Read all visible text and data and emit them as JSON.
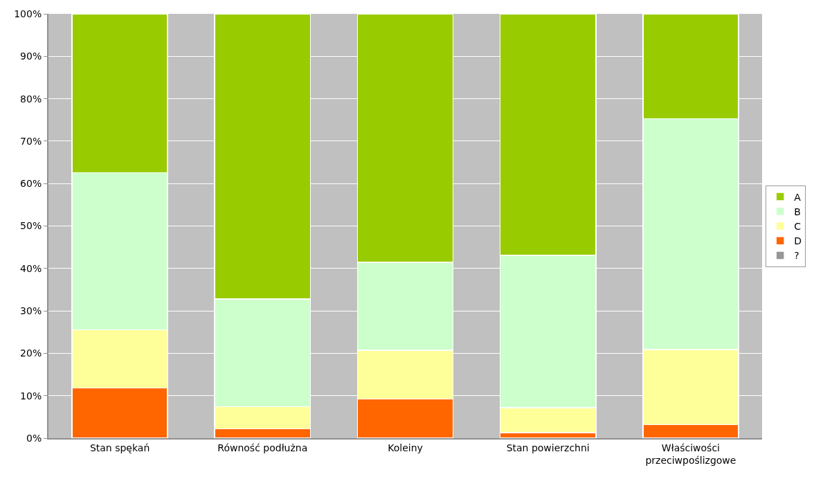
{
  "chart_data": {
    "type": "bar",
    "stacked": true,
    "categories": [
      "Stan spękań",
      "Równość podłużna",
      "Koleiny",
      "Stan powierzchni",
      "Właściwości przeciwpoślizgowe"
    ],
    "series": [
      {
        "name": "?",
        "color": "#969696",
        "values": [
          0,
          0,
          0,
          0,
          0
        ]
      },
      {
        "name": "D",
        "color": "#ff6600",
        "values": [
          11.8,
          2.2,
          9.2,
          1.3,
          3.2
        ]
      },
      {
        "name": "C",
        "color": "#ffff99",
        "values": [
          13.7,
          5.2,
          11.5,
          5.9,
          17.7
        ]
      },
      {
        "name": "B",
        "color": "#ccffcc",
        "values": [
          37.1,
          25.4,
          20.7,
          35.9,
          54.4
        ]
      },
      {
        "name": "A",
        "color": "#99cc00",
        "values": [
          37.4,
          67.2,
          58.6,
          56.9,
          24.7
        ]
      }
    ],
    "ylim": [
      0,
      100
    ],
    "yticks": [
      {
        "value": 0,
        "label": "0%"
      },
      {
        "value": 10,
        "label": "10%"
      },
      {
        "value": 20,
        "label": "20%"
      },
      {
        "value": 30,
        "label": "30%"
      },
      {
        "value": 40,
        "label": "40%"
      },
      {
        "value": 50,
        "label": "50%"
      },
      {
        "value": 60,
        "label": "60%"
      },
      {
        "value": 70,
        "label": "70%"
      },
      {
        "value": 80,
        "label": "80%"
      },
      {
        "value": 90,
        "label": "90%"
      },
      {
        "value": 100,
        "label": "100%"
      }
    ],
    "grid": "y",
    "legend": "right"
  }
}
